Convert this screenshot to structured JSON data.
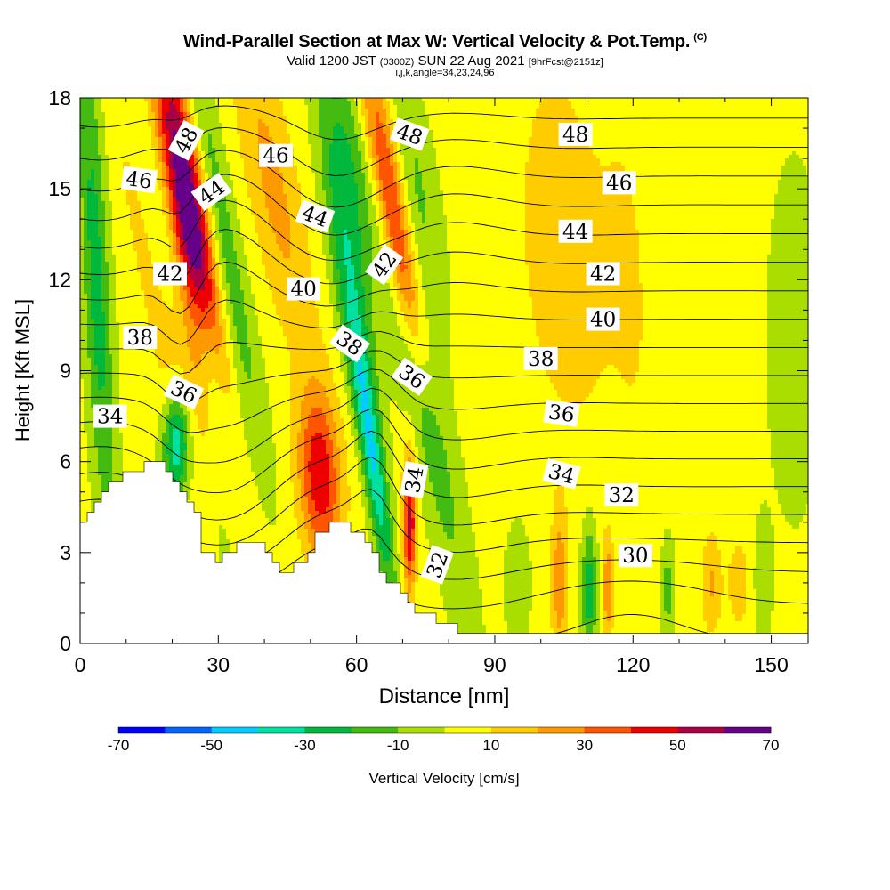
{
  "header": {
    "title": "Wind-Parallel Section at Max W: Vertical Velocity & Pot.Temp.",
    "title_mark": "(C)",
    "subtitle_valid": "Valid 1200 JST",
    "subtitle_utc": "(0300Z)",
    "subtitle_date": "SUN 22 Aug 2021",
    "subtitle_fcst": "[9hrFcst@2151z]",
    "params": "i,j,k,angle=34,23,24,96"
  },
  "colors": {
    "background": "#ffffff",
    "terrain": "#ffffff",
    "contour": "#000000"
  },
  "chart_data": {
    "type": "heatmap",
    "xlabel": "Distance [nm]",
    "ylabel": "Height [Kft MSL]",
    "xlim": [
      0,
      158
    ],
    "ylim": [
      0,
      18
    ],
    "x_ticks": [
      0,
      30,
      60,
      90,
      120,
      150
    ],
    "y_ticks": [
      0,
      3,
      6,
      9,
      12,
      15,
      18
    ],
    "x_tick_labels": [
      "0",
      "30",
      "60",
      "90",
      "120",
      "150"
    ],
    "y_tick_labels": [
      "0",
      "3",
      "6",
      "9",
      "12",
      "15",
      "18"
    ],
    "colorbar": {
      "label": "Vertical Velocity [cm/s]",
      "min": -70,
      "max": 70,
      "step": 10,
      "tick_values": [
        -70,
        -50,
        -30,
        -10,
        10,
        30,
        50,
        70
      ],
      "tick_labels": [
        "-70",
        "-50",
        "-30",
        "-10",
        "10",
        "30",
        "50",
        "70"
      ],
      "colors": [
        "#0000ff",
        "#0066ff",
        "#00ccff",
        "#00e0a0",
        "#00b83c",
        "#44bb11",
        "#aadd00",
        "#ffff00",
        "#ffcc00",
        "#ff9900",
        "#ff5500",
        "#ee0000",
        "#aa0044",
        "#660088"
      ]
    },
    "terrain_profile": [
      {
        "x": 0,
        "h": 4.0
      },
      {
        "x": 3,
        "h": 4.6
      },
      {
        "x": 6,
        "h": 5.1
      },
      {
        "x": 9,
        "h": 5.5
      },
      {
        "x": 12,
        "h": 5.7
      },
      {
        "x": 14,
        "h": 5.9
      },
      {
        "x": 18,
        "h": 5.95
      },
      {
        "x": 22,
        "h": 5.2
      },
      {
        "x": 25,
        "h": 4.6
      },
      {
        "x": 27,
        "h": 3.0
      },
      {
        "x": 30,
        "h": 2.8
      },
      {
        "x": 32,
        "h": 2.9
      },
      {
        "x": 35,
        "h": 3.3
      },
      {
        "x": 38,
        "h": 3.3
      },
      {
        "x": 40,
        "h": 3.2
      },
      {
        "x": 42,
        "h": 2.6
      },
      {
        "x": 45,
        "h": 2.4
      },
      {
        "x": 48,
        "h": 2.6
      },
      {
        "x": 50,
        "h": 3.1
      },
      {
        "x": 52,
        "h": 3.6
      },
      {
        "x": 55,
        "h": 3.9
      },
      {
        "x": 58,
        "h": 3.9
      },
      {
        "x": 61,
        "h": 3.6
      },
      {
        "x": 64,
        "h": 3.0
      },
      {
        "x": 66,
        "h": 2.4
      },
      {
        "x": 69,
        "h": 1.8
      },
      {
        "x": 72,
        "h": 1.3
      },
      {
        "x": 75,
        "h": 1.0
      },
      {
        "x": 78,
        "h": 0.7
      },
      {
        "x": 82,
        "h": 0.45
      },
      {
        "x": 86,
        "h": 0.35
      },
      {
        "x": 158,
        "h": 0.35
      }
    ],
    "w_features": [
      {
        "x": 22.5,
        "z": 16.0,
        "sx": 3.0,
        "sz": 3.0,
        "w": 55,
        "tilt": 1.3
      },
      {
        "x": 25.0,
        "z": 12.5,
        "sx": 2.5,
        "sz": 2.5,
        "w": 42,
        "tilt": 1.3
      },
      {
        "x": 24.5,
        "z": 9.0,
        "sx": 3.2,
        "sz": 2.5,
        "w": 25,
        "tilt": 1.0
      },
      {
        "x": 21.0,
        "z": 6.6,
        "sx": 2.0,
        "sz": 1.2,
        "w": -45,
        "tilt": 0.0
      },
      {
        "x": 19.0,
        "z": 12.0,
        "sx": 2.5,
        "sz": 6.0,
        "w": -15,
        "tilt": 1.3
      },
      {
        "x": 30.0,
        "z": 14.0,
        "sx": 2.5,
        "sz": 5.0,
        "w": -25,
        "tilt": 1.2
      },
      {
        "x": 28.0,
        "z": 9.5,
        "sx": 1.8,
        "sz": 2.5,
        "w": -18,
        "tilt": 0.8
      },
      {
        "x": 3.5,
        "z": 12.0,
        "sx": 2.0,
        "sz": 6.0,
        "w": -28,
        "tilt": 0.3
      },
      {
        "x": 14.0,
        "z": 14.0,
        "sx": 3.0,
        "sz": 5.0,
        "w": 14,
        "tilt": 1.1
      },
      {
        "x": 42.0,
        "z": 15.0,
        "sx": 4.0,
        "sz": 4.0,
        "w": 20,
        "tilt": 1.2
      },
      {
        "x": 52.0,
        "z": 5.5,
        "sx": 3.2,
        "sz": 2.0,
        "w": 45,
        "tilt": 0.3
      },
      {
        "x": 58.0,
        "z": 16.0,
        "sx": 3.5,
        "sz": 3.0,
        "w": -22,
        "tilt": 1.0
      },
      {
        "x": 58.5,
        "z": 12.0,
        "sx": 2.5,
        "sz": 3.0,
        "w": -25,
        "tilt": 1.0
      },
      {
        "x": 64.5,
        "z": 5.0,
        "sx": 1.6,
        "sz": 2.5,
        "w": -35,
        "tilt": 0.9
      },
      {
        "x": 61.0,
        "z": 8.5,
        "sx": 2.0,
        "sz": 2.0,
        "w": -20,
        "tilt": 1.0
      },
      {
        "x": 66.0,
        "z": 16.0,
        "sx": 2.5,
        "sz": 3.0,
        "w": 35,
        "tilt": 1.2
      },
      {
        "x": 70.5,
        "z": 12.0,
        "sx": 2.0,
        "sz": 2.5,
        "w": 28,
        "tilt": 1.2
      },
      {
        "x": 71.5,
        "z": 4.0,
        "sx": 1.0,
        "sz": 1.6,
        "w": 50,
        "tilt": 0.0
      },
      {
        "x": 75.0,
        "z": 8.0,
        "sx": 3.0,
        "sz": 5.0,
        "w": -20,
        "tilt": 1.2
      },
      {
        "x": 73.0,
        "z": 15.0,
        "sx": 3.0,
        "sz": 3.0,
        "w": -15,
        "tilt": 1.0
      },
      {
        "x": 105.0,
        "z": 13.0,
        "sx": 8.0,
        "sz": 5.0,
        "w": 12,
        "tilt": 0.4
      },
      {
        "x": 95.0,
        "z": 2.0,
        "sx": 2.0,
        "sz": 1.5,
        "w": -10,
        "tilt": 0.0
      },
      {
        "x": 104.0,
        "z": 2.0,
        "sx": 1.2,
        "sz": 1.8,
        "w": 24,
        "tilt": 0.0
      },
      {
        "x": 110.5,
        "z": 1.8,
        "sx": 1.2,
        "sz": 1.5,
        "w": -30,
        "tilt": 0.0
      },
      {
        "x": 114.5,
        "z": 1.8,
        "sx": 0.8,
        "sz": 1.2,
        "w": 25,
        "tilt": 0.0
      },
      {
        "x": 127.5,
        "z": 1.8,
        "sx": 1.0,
        "sz": 1.2,
        "w": -18,
        "tilt": 0.0
      },
      {
        "x": 137.0,
        "z": 2.0,
        "sx": 1.5,
        "sz": 1.2,
        "w": 18,
        "tilt": 0.0
      },
      {
        "x": 143.0,
        "z": 2.0,
        "sx": 2.0,
        "sz": 1.2,
        "w": 12,
        "tilt": 0.0
      },
      {
        "x": 148.0,
        "z": 2.0,
        "sx": 1.5,
        "sz": 1.5,
        "w": -10,
        "tilt": 0.0
      },
      {
        "x": 155.0,
        "z": 10.0,
        "sx": 4.0,
        "sz": 4.0,
        "w": -10,
        "tilt": 0.0
      },
      {
        "x": 120.0,
        "z": 12.0,
        "sx": 4.0,
        "sz": 6.0,
        "w": 6,
        "tilt": 0.3
      }
    ],
    "theta_levels": [
      30,
      31,
      32,
      33,
      34,
      35,
      36,
      37,
      38,
      39,
      40,
      41,
      42,
      43,
      44,
      45,
      46,
      47,
      48,
      49,
      50
    ],
    "contour_labels": [
      {
        "text": "48",
        "x": 23.0,
        "z": 16.6,
        "angle": -62
      },
      {
        "text": "46",
        "x": 12.8,
        "z": 15.3,
        "angle": 8
      },
      {
        "text": "44",
        "x": 28.5,
        "z": 14.9,
        "angle": -35
      },
      {
        "text": "46",
        "x": 42.5,
        "z": 16.1,
        "angle": 0
      },
      {
        "text": "48",
        "x": 71.5,
        "z": 16.8,
        "angle": 20
      },
      {
        "text": "48",
        "x": 107.5,
        "z": 16.8,
        "angle": 0
      },
      {
        "text": "46",
        "x": 117.0,
        "z": 15.2,
        "angle": 0
      },
      {
        "text": "44",
        "x": 51.0,
        "z": 14.1,
        "angle": 20
      },
      {
        "text": "44",
        "x": 107.5,
        "z": 13.6,
        "angle": 0
      },
      {
        "text": "42",
        "x": 19.5,
        "z": 12.2,
        "angle": 0
      },
      {
        "text": "42",
        "x": 66.0,
        "z": 12.5,
        "angle": -55
      },
      {
        "text": "42",
        "x": 113.5,
        "z": 12.2,
        "angle": 0
      },
      {
        "text": "40",
        "x": 48.5,
        "z": 11.7,
        "angle": 0
      },
      {
        "text": "40",
        "x": 113.5,
        "z": 10.7,
        "angle": 0
      },
      {
        "text": "38",
        "x": 13.0,
        "z": 10.1,
        "angle": 0
      },
      {
        "text": "38",
        "x": 58.5,
        "z": 9.9,
        "angle": 35
      },
      {
        "text": "38",
        "x": 100.0,
        "z": 9.4,
        "angle": 0
      },
      {
        "text": "36",
        "x": 22.5,
        "z": 8.3,
        "angle": 25
      },
      {
        "text": "36",
        "x": 72.0,
        "z": 8.8,
        "angle": 35
      },
      {
        "text": "36",
        "x": 104.5,
        "z": 7.6,
        "angle": 8
      },
      {
        "text": "34",
        "x": 6.5,
        "z": 7.5,
        "angle": 0
      },
      {
        "text": "34",
        "x": 72.5,
        "z": 5.4,
        "angle": -80
      },
      {
        "text": "34",
        "x": 104.5,
        "z": 5.6,
        "angle": 15
      },
      {
        "text": "32",
        "x": 77.5,
        "z": 2.6,
        "angle": -70
      },
      {
        "text": "32",
        "x": 117.5,
        "z": 4.9,
        "angle": 0
      },
      {
        "text": "30",
        "x": 120.5,
        "z": 2.9,
        "angle": 0
      }
    ]
  }
}
